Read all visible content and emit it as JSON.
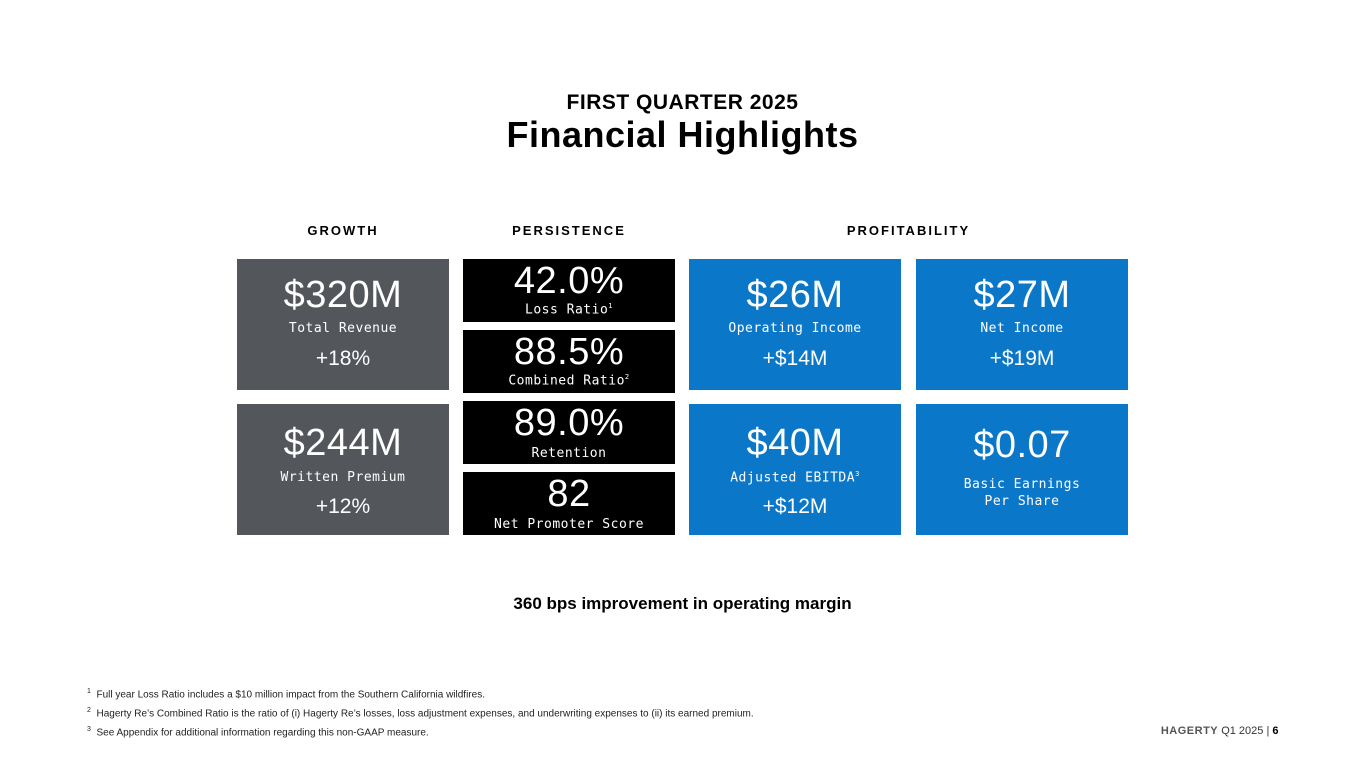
{
  "header": {
    "kicker": "FIRST QUARTER 2025",
    "title": "Financial Highlights"
  },
  "columns": {
    "growth": "GROWTH",
    "persistence": "PERSISTENCE",
    "profitability": "PROFITABILITY"
  },
  "growth": [
    {
      "value": "$320M",
      "label": "Total Revenue",
      "change": "+18%"
    },
    {
      "value": "$244M",
      "label": "Written Premium",
      "change": "+12%"
    }
  ],
  "persistence": [
    {
      "value": "42.0%",
      "label": "Loss Ratio",
      "note": "1"
    },
    {
      "value": "88.5%",
      "label": "Combined Ratio",
      "note": "2"
    },
    {
      "value": "89.0%",
      "label": "Retention"
    },
    {
      "value": "82",
      "label": "Net Promoter Score"
    }
  ],
  "profitability": [
    {
      "value": "$26M",
      "label": "Operating Income",
      "change": "+$14M"
    },
    {
      "value": "$27M",
      "label": "Net Income",
      "change": "+$19M"
    },
    {
      "value": "$40M",
      "label": "Adjusted EBITDA",
      "note": "3",
      "change": "+$12M"
    },
    {
      "value": "$0.07",
      "label_line1": "Basic Earnings",
      "label_line2": "Per Share"
    }
  ],
  "summary": "360 bps improvement in operating margin",
  "footnotes": [
    {
      "mark": "1",
      "text": "Full year Loss Ratio includes a $10 million impact from the Southern California wildfires."
    },
    {
      "mark": "2",
      "text": "Hagerty Re’s Combined Ratio is the ratio of (i) Hagerty Re’s losses, loss adjustment expenses, and underwriting expenses to (ii) its earned premium."
    },
    {
      "mark": "3",
      "text": "See Appendix for additional information regarding this non-GAAP measure."
    }
  ],
  "footer": {
    "brand": "HAGERTY",
    "period": "Q1 2025",
    "separator": "|",
    "page": "6"
  },
  "colors": {
    "grey": "#53575c",
    "black": "#000000",
    "blue": "#0b77c8"
  }
}
